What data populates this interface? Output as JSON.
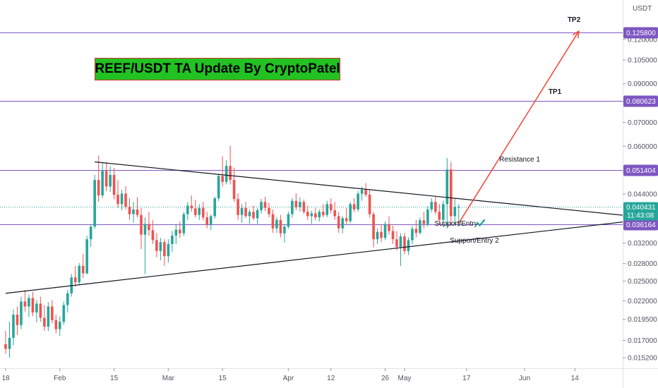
{
  "symbol_currency": "USDT",
  "title": "REEF/USDT TA Update By CryptoPatel",
  "colors": {
    "up": "#26a69a",
    "down": "#ef5350",
    "level_line": "#7e57c2",
    "trend_line": "#131722",
    "arrow": "#f44336",
    "current_price": "#26a69a",
    "check": "#26a69a"
  },
  "annotations": {
    "tp1": "TP1",
    "tp2": "TP2",
    "resistance": "Resistance 1",
    "support_entry": "Support/Entry",
    "support_entry_2": "Support/Entry 2"
  },
  "chart_data": {
    "type": "candlestick",
    "y_scale": "log",
    "ylim": [
      0.0142,
      0.155
    ],
    "x_ticks": [
      "18",
      "Feb",
      "15",
      "Mar",
      "15",
      "Apr",
      "12",
      "26",
      "May",
      "17",
      "Jun",
      "14"
    ],
    "y_ticks": [
      "0.120000",
      "0.105000",
      "0.090000",
      "0.080000",
      "0.070000",
      "0.060000",
      "0.051000",
      "0.044000",
      "0.038000",
      "0.032000",
      "0.028000",
      "0.025000",
      "0.022000",
      "0.019500",
      "0.017000",
      "0.015200"
    ],
    "levels": [
      {
        "name": "TP2",
        "value": 0.1258,
        "label": "0.125800"
      },
      {
        "name": "TP1",
        "value": 0.080623,
        "label": "0.080623"
      },
      {
        "name": "Resistance 1",
        "value": 0.051404,
        "label": "0.051404"
      },
      {
        "name": "Support/Entry",
        "value": 0.036164,
        "label": "0.036164"
      }
    ],
    "current_price": {
      "value": 0.040431,
      "label": "0.040431",
      "countdown": "11:43:08"
    },
    "trendlines": [
      {
        "name": "descending",
        "from": {
          "date": "2021-02-10",
          "price": 0.0542
        },
        "to": {
          "date": "2021-07-02",
          "price": 0.0378
        }
      },
      {
        "name": "ascending",
        "from": {
          "date": "2021-01-18",
          "price": 0.0231
        },
        "to": {
          "date": "2021-07-02",
          "price": 0.0373
        }
      }
    ],
    "projection": {
      "from": {
        "date": "2021-05-15",
        "price": 0.0364
      },
      "to": {
        "date": "2021-06-15",
        "price": 0.1266
      }
    },
    "candles": [
      {
        "d": "2021-01-18",
        "o": 0.0166,
        "h": 0.0181,
        "l": 0.0156,
        "c": 0.0161
      },
      {
        "d": "2021-01-19",
        "o": 0.0161,
        "h": 0.0192,
        "l": 0.0152,
        "c": 0.0173
      },
      {
        "d": "2021-01-20",
        "o": 0.0173,
        "h": 0.0208,
        "l": 0.0165,
        "c": 0.0201
      },
      {
        "d": "2021-01-21",
        "o": 0.0201,
        "h": 0.0212,
        "l": 0.0176,
        "c": 0.0188
      },
      {
        "d": "2021-01-22",
        "o": 0.0188,
        "h": 0.0226,
        "l": 0.0183,
        "c": 0.0219
      },
      {
        "d": "2021-01-23",
        "o": 0.0219,
        "h": 0.0236,
        "l": 0.0205,
        "c": 0.0212
      },
      {
        "d": "2021-01-24",
        "o": 0.0212,
        "h": 0.0229,
        "l": 0.0198,
        "c": 0.0224
      },
      {
        "d": "2021-01-25",
        "o": 0.0224,
        "h": 0.0233,
        "l": 0.0199,
        "c": 0.0204
      },
      {
        "d": "2021-01-26",
        "o": 0.0204,
        "h": 0.0221,
        "l": 0.0191,
        "c": 0.0216
      },
      {
        "d": "2021-01-27",
        "o": 0.0216,
        "h": 0.0226,
        "l": 0.0192,
        "c": 0.0197
      },
      {
        "d": "2021-01-28",
        "o": 0.0197,
        "h": 0.0214,
        "l": 0.0181,
        "c": 0.0186
      },
      {
        "d": "2021-01-29",
        "o": 0.0186,
        "h": 0.0218,
        "l": 0.0181,
        "c": 0.0212
      },
      {
        "d": "2021-01-30",
        "o": 0.0212,
        "h": 0.0221,
        "l": 0.019,
        "c": 0.0194
      },
      {
        "d": "2021-01-31",
        "o": 0.0194,
        "h": 0.0201,
        "l": 0.0178,
        "c": 0.0183
      },
      {
        "d": "2021-02-01",
        "o": 0.0183,
        "h": 0.0199,
        "l": 0.0175,
        "c": 0.0192
      },
      {
        "d": "2021-02-02",
        "o": 0.0192,
        "h": 0.0219,
        "l": 0.0188,
        "c": 0.0214
      },
      {
        "d": "2021-02-03",
        "o": 0.0214,
        "h": 0.0236,
        "l": 0.0204,
        "c": 0.0231
      },
      {
        "d": "2021-02-04",
        "o": 0.0231,
        "h": 0.0262,
        "l": 0.0226,
        "c": 0.0256
      },
      {
        "d": "2021-02-05",
        "o": 0.0256,
        "h": 0.0276,
        "l": 0.0241,
        "c": 0.0248
      },
      {
        "d": "2021-02-06",
        "o": 0.0248,
        "h": 0.0281,
        "l": 0.0244,
        "c": 0.0276
      },
      {
        "d": "2021-02-07",
        "o": 0.0276,
        "h": 0.0298,
        "l": 0.0255,
        "c": 0.0263
      },
      {
        "d": "2021-02-08",
        "o": 0.0263,
        "h": 0.0335,
        "l": 0.0261,
        "c": 0.0328
      },
      {
        "d": "2021-02-09",
        "o": 0.0328,
        "h": 0.0362,
        "l": 0.0312,
        "c": 0.0356
      },
      {
        "d": "2021-02-10",
        "o": 0.0356,
        "h": 0.0498,
        "l": 0.0351,
        "c": 0.0482
      },
      {
        "d": "2021-02-11",
        "o": 0.0482,
        "h": 0.0565,
        "l": 0.0418,
        "c": 0.0436
      },
      {
        "d": "2021-02-12",
        "o": 0.0436,
        "h": 0.0538,
        "l": 0.0428,
        "c": 0.0511
      },
      {
        "d": "2021-02-13",
        "o": 0.0511,
        "h": 0.0542,
        "l": 0.0448,
        "c": 0.0462
      },
      {
        "d": "2021-02-14",
        "o": 0.0462,
        "h": 0.0527,
        "l": 0.0446,
        "c": 0.0498
      },
      {
        "d": "2021-02-15",
        "o": 0.0498,
        "h": 0.0521,
        "l": 0.0425,
        "c": 0.0438
      },
      {
        "d": "2021-02-16",
        "o": 0.0438,
        "h": 0.0481,
        "l": 0.0402,
        "c": 0.0412
      },
      {
        "d": "2021-02-17",
        "o": 0.0412,
        "h": 0.0452,
        "l": 0.0396,
        "c": 0.0441
      },
      {
        "d": "2021-02-18",
        "o": 0.0441,
        "h": 0.0463,
        "l": 0.0398,
        "c": 0.0405
      },
      {
        "d": "2021-02-19",
        "o": 0.0405,
        "h": 0.0428,
        "l": 0.0372,
        "c": 0.0386
      },
      {
        "d": "2021-02-20",
        "o": 0.0386,
        "h": 0.0418,
        "l": 0.0365,
        "c": 0.0398
      },
      {
        "d": "2021-02-21",
        "o": 0.0398,
        "h": 0.0431,
        "l": 0.0378,
        "c": 0.0384
      },
      {
        "d": "2021-02-22",
        "o": 0.0384,
        "h": 0.0402,
        "l": 0.0308,
        "c": 0.0338
      },
      {
        "d": "2021-02-23",
        "o": 0.0338,
        "h": 0.0378,
        "l": 0.0262,
        "c": 0.0362
      },
      {
        "d": "2021-02-24",
        "o": 0.0362,
        "h": 0.0392,
        "l": 0.0336,
        "c": 0.0348
      },
      {
        "d": "2021-02-25",
        "o": 0.0348,
        "h": 0.0372,
        "l": 0.0318,
        "c": 0.0326
      },
      {
        "d": "2021-02-26",
        "o": 0.0326,
        "h": 0.0342,
        "l": 0.0292,
        "c": 0.0304
      },
      {
        "d": "2021-02-27",
        "o": 0.0304,
        "h": 0.0331,
        "l": 0.0286,
        "c": 0.0322
      },
      {
        "d": "2021-02-28",
        "o": 0.0322,
        "h": 0.0328,
        "l": 0.0276,
        "c": 0.0294
      },
      {
        "d": "2021-03-01",
        "o": 0.0294,
        "h": 0.0328,
        "l": 0.0282,
        "c": 0.0318
      },
      {
        "d": "2021-03-02",
        "o": 0.0318,
        "h": 0.0346,
        "l": 0.0302,
        "c": 0.0336
      },
      {
        "d": "2021-03-03",
        "o": 0.0336,
        "h": 0.0362,
        "l": 0.0318,
        "c": 0.0349
      },
      {
        "d": "2021-03-04",
        "o": 0.0349,
        "h": 0.0368,
        "l": 0.0331,
        "c": 0.0341
      },
      {
        "d": "2021-03-05",
        "o": 0.0341,
        "h": 0.0392,
        "l": 0.0335,
        "c": 0.0386
      },
      {
        "d": "2021-03-06",
        "o": 0.0386,
        "h": 0.0418,
        "l": 0.0371,
        "c": 0.0408
      },
      {
        "d": "2021-03-07",
        "o": 0.0408,
        "h": 0.0436,
        "l": 0.0392,
        "c": 0.0401
      },
      {
        "d": "2021-03-08",
        "o": 0.0401,
        "h": 0.0424,
        "l": 0.0378,
        "c": 0.0384
      },
      {
        "d": "2021-03-09",
        "o": 0.0384,
        "h": 0.0412,
        "l": 0.0372,
        "c": 0.0402
      },
      {
        "d": "2021-03-10",
        "o": 0.0402,
        "h": 0.0418,
        "l": 0.0371,
        "c": 0.0378
      },
      {
        "d": "2021-03-11",
        "o": 0.0378,
        "h": 0.0392,
        "l": 0.0352,
        "c": 0.0361
      },
      {
        "d": "2021-03-12",
        "o": 0.0361,
        "h": 0.0385,
        "l": 0.0348,
        "c": 0.0381
      },
      {
        "d": "2021-03-13",
        "o": 0.0381,
        "h": 0.0432,
        "l": 0.0375,
        "c": 0.0428
      },
      {
        "d": "2021-03-14",
        "o": 0.0428,
        "h": 0.0502,
        "l": 0.0421,
        "c": 0.0495
      },
      {
        "d": "2021-03-15",
        "o": 0.0495,
        "h": 0.0562,
        "l": 0.0462,
        "c": 0.0476
      },
      {
        "d": "2021-03-16",
        "o": 0.0476,
        "h": 0.0548,
        "l": 0.0468,
        "c": 0.0528
      },
      {
        "d": "2021-03-17",
        "o": 0.0528,
        "h": 0.0602,
        "l": 0.0468,
        "c": 0.0482
      },
      {
        "d": "2021-03-18",
        "o": 0.0482,
        "h": 0.0522,
        "l": 0.0418,
        "c": 0.0426
      },
      {
        "d": "2021-03-19",
        "o": 0.0426,
        "h": 0.0442,
        "l": 0.0372,
        "c": 0.0384
      },
      {
        "d": "2021-03-20",
        "o": 0.0384,
        "h": 0.0412,
        "l": 0.0365,
        "c": 0.0402
      },
      {
        "d": "2021-03-21",
        "o": 0.0402,
        "h": 0.0418,
        "l": 0.0376,
        "c": 0.0381
      },
      {
        "d": "2021-03-22",
        "o": 0.0381,
        "h": 0.0398,
        "l": 0.0362,
        "c": 0.0392
      },
      {
        "d": "2021-03-23",
        "o": 0.0392,
        "h": 0.0408,
        "l": 0.0371,
        "c": 0.0376
      },
      {
        "d": "2021-03-24",
        "o": 0.0376,
        "h": 0.0402,
        "l": 0.0362,
        "c": 0.0396
      },
      {
        "d": "2021-03-25",
        "o": 0.0396,
        "h": 0.0426,
        "l": 0.0388,
        "c": 0.0418
      },
      {
        "d": "2021-03-26",
        "o": 0.0418,
        "h": 0.0432,
        "l": 0.0394,
        "c": 0.0402
      },
      {
        "d": "2021-03-27",
        "o": 0.0402,
        "h": 0.0416,
        "l": 0.0378,
        "c": 0.0386
      },
      {
        "d": "2021-03-28",
        "o": 0.0386,
        "h": 0.0398,
        "l": 0.0342,
        "c": 0.0352
      },
      {
        "d": "2021-03-29",
        "o": 0.0352,
        "h": 0.0378,
        "l": 0.0342,
        "c": 0.0372
      },
      {
        "d": "2021-03-30",
        "o": 0.0372,
        "h": 0.0384,
        "l": 0.0332,
        "c": 0.0341
      },
      {
        "d": "2021-03-31",
        "o": 0.0341,
        "h": 0.0362,
        "l": 0.0321,
        "c": 0.0356
      },
      {
        "d": "2021-04-01",
        "o": 0.0356,
        "h": 0.0392,
        "l": 0.0351,
        "c": 0.0386
      },
      {
        "d": "2021-04-02",
        "o": 0.0386,
        "h": 0.0428,
        "l": 0.0378,
        "c": 0.0421
      },
      {
        "d": "2021-04-03",
        "o": 0.0421,
        "h": 0.0442,
        "l": 0.0396,
        "c": 0.0404
      },
      {
        "d": "2021-04-04",
        "o": 0.0404,
        "h": 0.0431,
        "l": 0.0392,
        "c": 0.0418
      },
      {
        "d": "2021-04-05",
        "o": 0.0418,
        "h": 0.0425,
        "l": 0.0386,
        "c": 0.0392
      },
      {
        "d": "2021-04-06",
        "o": 0.0392,
        "h": 0.0408,
        "l": 0.0372,
        "c": 0.0381
      },
      {
        "d": "2021-04-07",
        "o": 0.0381,
        "h": 0.0395,
        "l": 0.0362,
        "c": 0.0388
      },
      {
        "d": "2021-04-08",
        "o": 0.0388,
        "h": 0.0402,
        "l": 0.0371,
        "c": 0.0378
      },
      {
        "d": "2021-04-09",
        "o": 0.0378,
        "h": 0.0398,
        "l": 0.0368,
        "c": 0.0392
      },
      {
        "d": "2021-04-10",
        "o": 0.0392,
        "h": 0.0412,
        "l": 0.0378,
        "c": 0.0384
      },
      {
        "d": "2021-04-11",
        "o": 0.0384,
        "h": 0.0421,
        "l": 0.0379,
        "c": 0.0412
      },
      {
        "d": "2021-04-12",
        "o": 0.0412,
        "h": 0.0428,
        "l": 0.0388,
        "c": 0.0396
      },
      {
        "d": "2021-04-13",
        "o": 0.0396,
        "h": 0.0418,
        "l": 0.0372,
        "c": 0.0381
      },
      {
        "d": "2021-04-14",
        "o": 0.0381,
        "h": 0.0392,
        "l": 0.0342,
        "c": 0.0352
      },
      {
        "d": "2021-04-15",
        "o": 0.0352,
        "h": 0.0381,
        "l": 0.0341,
        "c": 0.0376
      },
      {
        "d": "2021-04-16",
        "o": 0.0376,
        "h": 0.0402,
        "l": 0.0362,
        "c": 0.0369
      },
      {
        "d": "2021-04-17",
        "o": 0.0369,
        "h": 0.0418,
        "l": 0.0364,
        "c": 0.0412
      },
      {
        "d": "2021-04-18",
        "o": 0.0412,
        "h": 0.0428,
        "l": 0.0391,
        "c": 0.0398
      },
      {
        "d": "2021-04-19",
        "o": 0.0398,
        "h": 0.0448,
        "l": 0.0392,
        "c": 0.0441
      },
      {
        "d": "2021-04-20",
        "o": 0.0441,
        "h": 0.0462,
        "l": 0.0421,
        "c": 0.0452
      },
      {
        "d": "2021-04-21",
        "o": 0.0452,
        "h": 0.0472,
        "l": 0.0432,
        "c": 0.0438
      },
      {
        "d": "2021-04-22",
        "o": 0.0438,
        "h": 0.0452,
        "l": 0.0378,
        "c": 0.0386
      },
      {
        "d": "2021-04-23",
        "o": 0.0386,
        "h": 0.0392,
        "l": 0.0311,
        "c": 0.0328
      },
      {
        "d": "2021-04-24",
        "o": 0.0328,
        "h": 0.0352,
        "l": 0.0318,
        "c": 0.0344
      },
      {
        "d": "2021-04-25",
        "o": 0.0344,
        "h": 0.0362,
        "l": 0.0322,
        "c": 0.0331
      },
      {
        "d": "2021-04-26",
        "o": 0.0331,
        "h": 0.0368,
        "l": 0.0326,
        "c": 0.0362
      },
      {
        "d": "2021-04-27",
        "o": 0.0362,
        "h": 0.0381,
        "l": 0.0338,
        "c": 0.0346
      },
      {
        "d": "2021-04-28",
        "o": 0.0346,
        "h": 0.0358,
        "l": 0.0318,
        "c": 0.0328
      },
      {
        "d": "2021-04-29",
        "o": 0.0328,
        "h": 0.0346,
        "l": 0.0305,
        "c": 0.0312
      },
      {
        "d": "2021-04-30",
        "o": 0.0312,
        "h": 0.0341,
        "l": 0.0276,
        "c": 0.0334
      },
      {
        "d": "2021-05-01",
        "o": 0.0334,
        "h": 0.0342,
        "l": 0.0298,
        "c": 0.0304
      },
      {
        "d": "2021-05-02",
        "o": 0.0304,
        "h": 0.0332,
        "l": 0.0296,
        "c": 0.0326
      },
      {
        "d": "2021-05-03",
        "o": 0.0326,
        "h": 0.0358,
        "l": 0.0318,
        "c": 0.0351
      },
      {
        "d": "2021-05-04",
        "o": 0.0351,
        "h": 0.0372,
        "l": 0.0332,
        "c": 0.0342
      },
      {
        "d": "2021-05-05",
        "o": 0.0342,
        "h": 0.0378,
        "l": 0.0338,
        "c": 0.0371
      },
      {
        "d": "2021-05-06",
        "o": 0.0371,
        "h": 0.0392,
        "l": 0.0352,
        "c": 0.0362
      },
      {
        "d": "2021-05-07",
        "o": 0.0362,
        "h": 0.0406,
        "l": 0.0356,
        "c": 0.0398
      },
      {
        "d": "2021-05-08",
        "o": 0.0398,
        "h": 0.0428,
        "l": 0.0391,
        "c": 0.0418
      },
      {
        "d": "2021-05-09",
        "o": 0.0418,
        "h": 0.0432,
        "l": 0.0386,
        "c": 0.0392
      },
      {
        "d": "2021-05-10",
        "o": 0.0392,
        "h": 0.0412,
        "l": 0.0361,
        "c": 0.0372
      },
      {
        "d": "2021-05-11",
        "o": 0.0372,
        "h": 0.0421,
        "l": 0.0366,
        "c": 0.0412
      },
      {
        "d": "2021-05-12",
        "o": 0.0412,
        "h": 0.0556,
        "l": 0.0352,
        "c": 0.0516
      },
      {
        "d": "2021-05-13",
        "o": 0.0516,
        "h": 0.0542,
        "l": 0.0358,
        "c": 0.0381
      },
      {
        "d": "2021-05-14",
        "o": 0.0381,
        "h": 0.0428,
        "l": 0.0362,
        "c": 0.0404
      },
      {
        "d": "2021-05-15",
        "o": 0.0404,
        "h": 0.0412,
        "l": 0.0356,
        "c": 0.04043
      }
    ]
  }
}
